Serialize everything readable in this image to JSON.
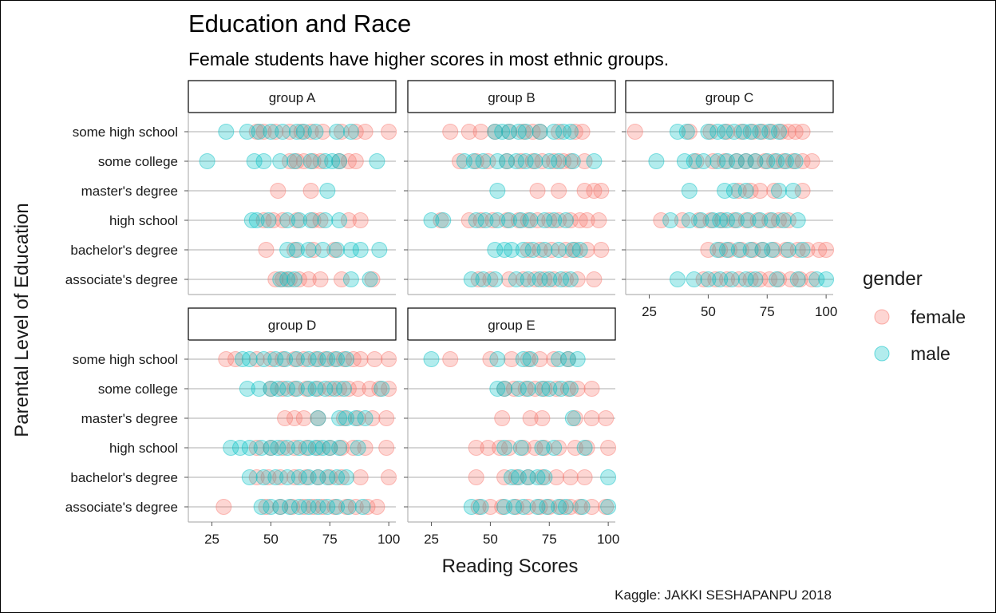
{
  "chart_data": {
    "type": "scatter",
    "title": "Education and Race",
    "subtitle": "Female students have higher scores in most ethnic groups.",
    "xlabel": "Reading Scores",
    "ylabel": "Parental Level of Education",
    "caption": "Kaggle: JAKKI SESHAPANPU 2018",
    "xlim": [
      15,
      103
    ],
    "x_ticks": [
      25,
      50,
      75,
      100
    ],
    "x_tick_labels": [
      "25",
      "50",
      "75",
      "100"
    ],
    "categories": [
      "some high school",
      "some college",
      "master's degree",
      "high school",
      "bachelor's degree",
      "associate's degree"
    ],
    "legend": {
      "title": "gender",
      "position": "right",
      "entries": [
        {
          "label": "female",
          "color": "#F8766D"
        },
        {
          "label": "male",
          "color": "#00BFC4"
        }
      ]
    },
    "grid": true,
    "point_opacity": 0.3,
    "panels": [
      {
        "name": "group A",
        "x_axis_shown": false,
        "y_labels_shown": true,
        "series": [
          {
            "name": "female",
            "points": {
              "some high school": [
                44,
                47,
                52,
                58,
                63,
                67,
                72,
                80,
                86,
                90,
                100
              ],
              "some college": [
                58,
                61,
                64,
                68,
                71,
                79,
                83,
                86
              ],
              "master's degree": [
                53,
                67
              ],
              "high school": [
                47,
                51,
                55,
                61,
                68,
                71,
                83,
                88
              ],
              "bachelor's degree": [
                48,
                60,
                68,
                77
              ],
              "associate's degree": [
                52,
                55,
                58,
                62,
                66,
                71,
                80,
                93
              ]
            }
          },
          {
            "name": "male",
            "points": {
              "some high school": [
                31,
                40,
                45,
                50,
                55,
                61,
                64,
                69,
                78,
                84
              ],
              "some college": [
                23,
                43,
                47,
                54,
                60,
                67,
                73,
                76,
                79,
                95
              ],
              "master's degree": [
                74
              ],
              "high school": [
                42,
                44,
                49,
                57,
                62,
                67,
                73,
                79
              ],
              "bachelor's degree": [
                57,
                61,
                66,
                72,
                78,
                84,
                88,
                96
              ],
              "associate's degree": [
                54,
                57,
                60,
                84,
                92
              ]
            }
          }
        ]
      },
      {
        "name": "group B",
        "x_axis_shown": false,
        "y_labels_shown": false,
        "series": [
          {
            "name": "female",
            "points": {
              "some high school": [
                33,
                41,
                46,
                52,
                58,
                64,
                68,
                71,
                79,
                86,
                89
              ],
              "some college": [
                37,
                44,
                49,
                57,
                63,
                68,
                72,
                77,
                81,
                84,
                90
              ],
              "master's degree": [
                70,
                79,
                90,
                94,
                97
              ],
              "high school": [
                29,
                41,
                46,
                51,
                57,
                62,
                66,
                70,
                75,
                79,
                84,
                88,
                91,
                96
              ],
              "bachelor's degree": [
                66,
                71,
                76,
                82,
                86,
                91,
                97
              ],
              "associate's degree": [
                45,
                50,
                58,
                64,
                69,
                73,
                77,
                82,
                87,
                94
              ]
            }
          },
          {
            "name": "male",
            "points": {
              "some high school": [
                52,
                55,
                58,
                62,
                65,
                71,
                77,
                81,
                84
              ],
              "some college": [
                39,
                43,
                47,
                53,
                57,
                61,
                65,
                69,
                75,
                79,
                85,
                94
              ],
              "master's degree": [
                53
              ],
              "high school": [
                25,
                30,
                44,
                48,
                53,
                58,
                63,
                67,
                73,
                77,
                82
              ],
              "bachelor's degree": [
                52,
                56,
                59,
                64,
                68,
                73,
                79,
                85,
                88
              ],
              "associate's degree": [
                42,
                47,
                52,
                61,
                66,
                71,
                75,
                80,
                84
              ]
            }
          }
        ]
      },
      {
        "name": "group C",
        "x_axis_shown": true,
        "y_labels_shown": false,
        "series": [
          {
            "name": "female",
            "points": {
              "some high school": [
                19,
                42,
                51,
                58,
                64,
                69,
                73,
                77,
                81,
                84,
                87,
                90
              ],
              "some college": [
                45,
                52,
                57,
                62,
                66,
                70,
                74,
                78,
                82,
                86,
                90,
                94
              ],
              "master's degree": [
                63,
                68,
                72,
                78,
                90
              ],
              "high school": [
                30,
                39,
                46,
                51,
                56,
                61,
                66,
                71,
                76,
                80,
                84
              ],
              "bachelor's degree": [
                50,
                55,
                59,
                64,
                69,
                73,
                78,
                83,
                88,
                92,
                97,
                100
              ],
              "associate's degree": [
                48,
                53,
                58,
                63,
                68,
                72,
                76,
                80,
                85,
                89,
                94
              ]
            }
          },
          {
            "name": "male",
            "points": {
              "some high school": [
                37,
                41,
                50,
                54,
                57,
                61,
                65,
                68,
                72,
                76,
                80
              ],
              "some college": [
                28,
                40,
                44,
                48,
                54,
                58,
                62,
                66,
                70,
                75,
                79,
                83,
                87
              ],
              "master's degree": [
                42,
                57,
                61,
                66,
                80,
                86
              ],
              "high school": [
                34,
                42,
                47,
                52,
                55,
                58,
                62,
                67,
                72,
                77,
                82,
                88
              ],
              "bachelor's degree": [
                54,
                58,
                63,
                68,
                73,
                77,
                84,
                90
              ],
              "associate's degree": [
                37,
                44,
                50,
                55,
                60,
                66,
                70,
                79,
                88,
                96,
                100
              ]
            }
          }
        ]
      },
      {
        "name": "group D",
        "x_axis_shown": true,
        "y_labels_shown": true,
        "series": [
          {
            "name": "female",
            "points": {
              "some high school": [
                31,
                35,
                44,
                50,
                55,
                60,
                64,
                69,
                73,
                77,
                81,
                85,
                88,
                94,
                100
              ],
              "some college": [
                50,
                55,
                60,
                65,
                70,
                75,
                79,
                83,
                87,
                92,
                96,
                100
              ],
              "master's degree": [
                56,
                60,
                64,
                70,
                81,
                87,
                93,
                99
              ],
              "high school": [
                44,
                50,
                55,
                60,
                65,
                70,
                75,
                80,
                85,
                90,
                99
              ],
              "bachelor's degree": [
                44,
                49,
                54,
                60,
                65,
                70,
                75,
                80,
                88,
                100
              ],
              "associate's degree": [
                30,
                48,
                54,
                59,
                64,
                68,
                72,
                77,
                82,
                86,
                91,
                95
              ]
            }
          },
          {
            "name": "male",
            "points": {
              "some high school": [
                38,
                41,
                47,
                52,
                56,
                61,
                66,
                70,
                74,
                78,
                82
              ],
              "some college": [
                40,
                45,
                50,
                53,
                57,
                61,
                66,
                69,
                73,
                77,
                81,
                97
              ],
              "master's degree": [
                70,
                79,
                82,
                86,
                90
              ],
              "high school": [
                33,
                37,
                41,
                46,
                50,
                53,
                57,
                62,
                66,
                69,
                72,
                75,
                79,
                87
              ],
              "bachelor's degree": [
                41,
                47,
                52,
                57,
                62,
                66,
                70,
                74,
                78,
                82
              ],
              "associate's degree": [
                46,
                50,
                54,
                58,
                62,
                66,
                70,
                74,
                78,
                83,
                89
              ]
            }
          }
        ]
      },
      {
        "name": "group E",
        "x_axis_shown": true,
        "y_labels_shown": false,
        "series": [
          {
            "name": "female",
            "points": {
              "some high school": [
                33,
                50,
                59,
                66,
                71,
                77,
                83
              ],
              "some college": [
                56,
                60,
                65,
                69,
                73,
                78,
                83,
                87,
                93
              ],
              "master's degree": [
                55,
                67,
                72,
                86,
                93,
                99
              ],
              "high school": [
                44,
                49,
                54,
                58,
                64,
                69,
                73,
                79,
                86,
                91,
                100
              ],
              "bachelor's degree": [
                44,
                56,
                61,
                66,
                72,
                78,
                84,
                90
              ],
              "associate's degree": [
                45,
                50,
                55,
                61,
                66,
                71,
                75,
                80,
                84,
                88,
                93,
                99
              ]
            }
          },
          {
            "name": "male",
            "points": {
              "some high school": [
                25,
                53,
                64,
                67,
                79,
                83,
                87
              ],
              "some college": [
                53,
                56,
                62,
                66,
                72,
                75,
                80,
                84
              ],
              "master's degree": [
                85
              ],
              "high school": [
                56,
                63,
                72,
                77,
                90
              ],
              "bachelor's degree": [
                59,
                62,
                66,
                70,
                73,
                100
              ],
              "associate's degree": [
                42,
                46,
                56,
                60,
                64,
                70,
                74,
                79,
                82,
                89,
                100
              ]
            }
          }
        ]
      }
    ]
  }
}
